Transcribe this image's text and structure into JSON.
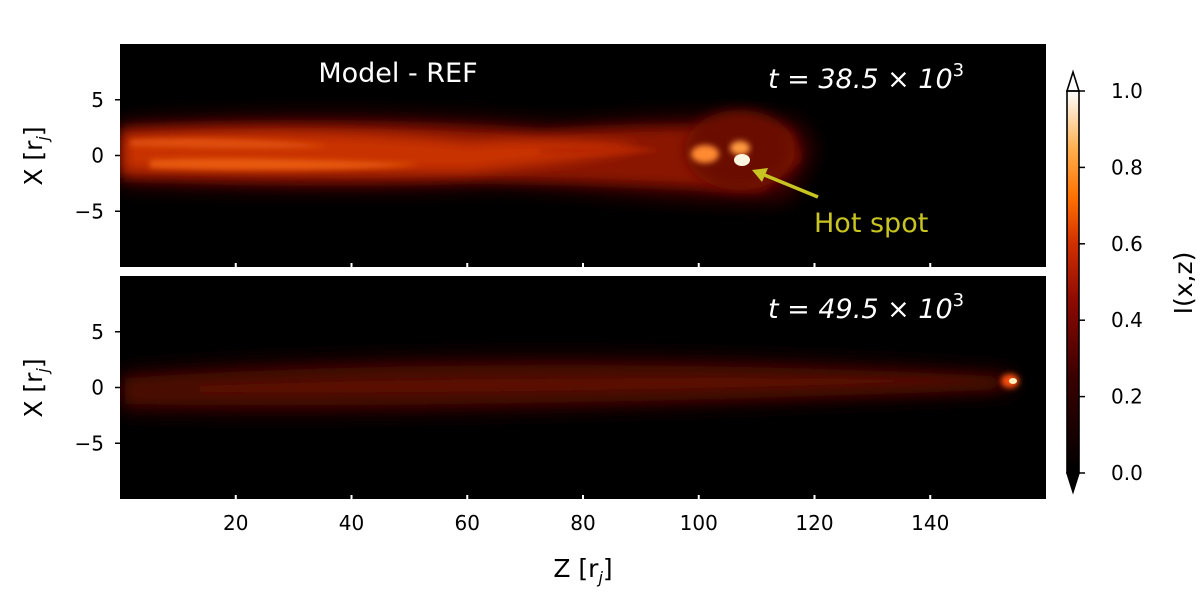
{
  "chart_data": {
    "type": "heatmap",
    "panels": [
      {
        "model_label": "Model - REF",
        "time_label": "t = 38.5 × 10",
        "time_exp": "3",
        "annotation": "Hot spot",
        "hot_spot": {
          "z": 108,
          "x": -0.8
        }
      },
      {
        "model_label": "",
        "time_label": "t = 49.5 × 10",
        "time_exp": "3",
        "hot_spot": {
          "z": 154,
          "x": 1.2
        }
      }
    ],
    "xlim": [
      0,
      160
    ],
    "ylim": [
      -10,
      10
    ],
    "xticks": [
      20,
      40,
      60,
      80,
      100,
      120,
      140
    ],
    "xtick_labels": [
      "20",
      "40",
      "60",
      "80",
      "100",
      "120",
      "140"
    ],
    "yticks": [
      5,
      0,
      -5
    ],
    "ytick_labels": [
      "5",
      "0",
      "−5"
    ],
    "xlabel": "Z [r",
    "xlabel_sub": "j",
    "ylabel": "X [r",
    "ylabel_sub": "j",
    "colorbar": {
      "label": "I(x,z)",
      "range": [
        0.0,
        1.0
      ],
      "ticks": [
        0.0,
        0.2,
        0.4,
        0.6,
        0.8,
        1.0
      ],
      "tick_labels": [
        "0.0",
        "0.2",
        "0.4",
        "0.6",
        "0.8",
        "1.0"
      ],
      "colormap": "afmhot",
      "extend": "both"
    }
  }
}
